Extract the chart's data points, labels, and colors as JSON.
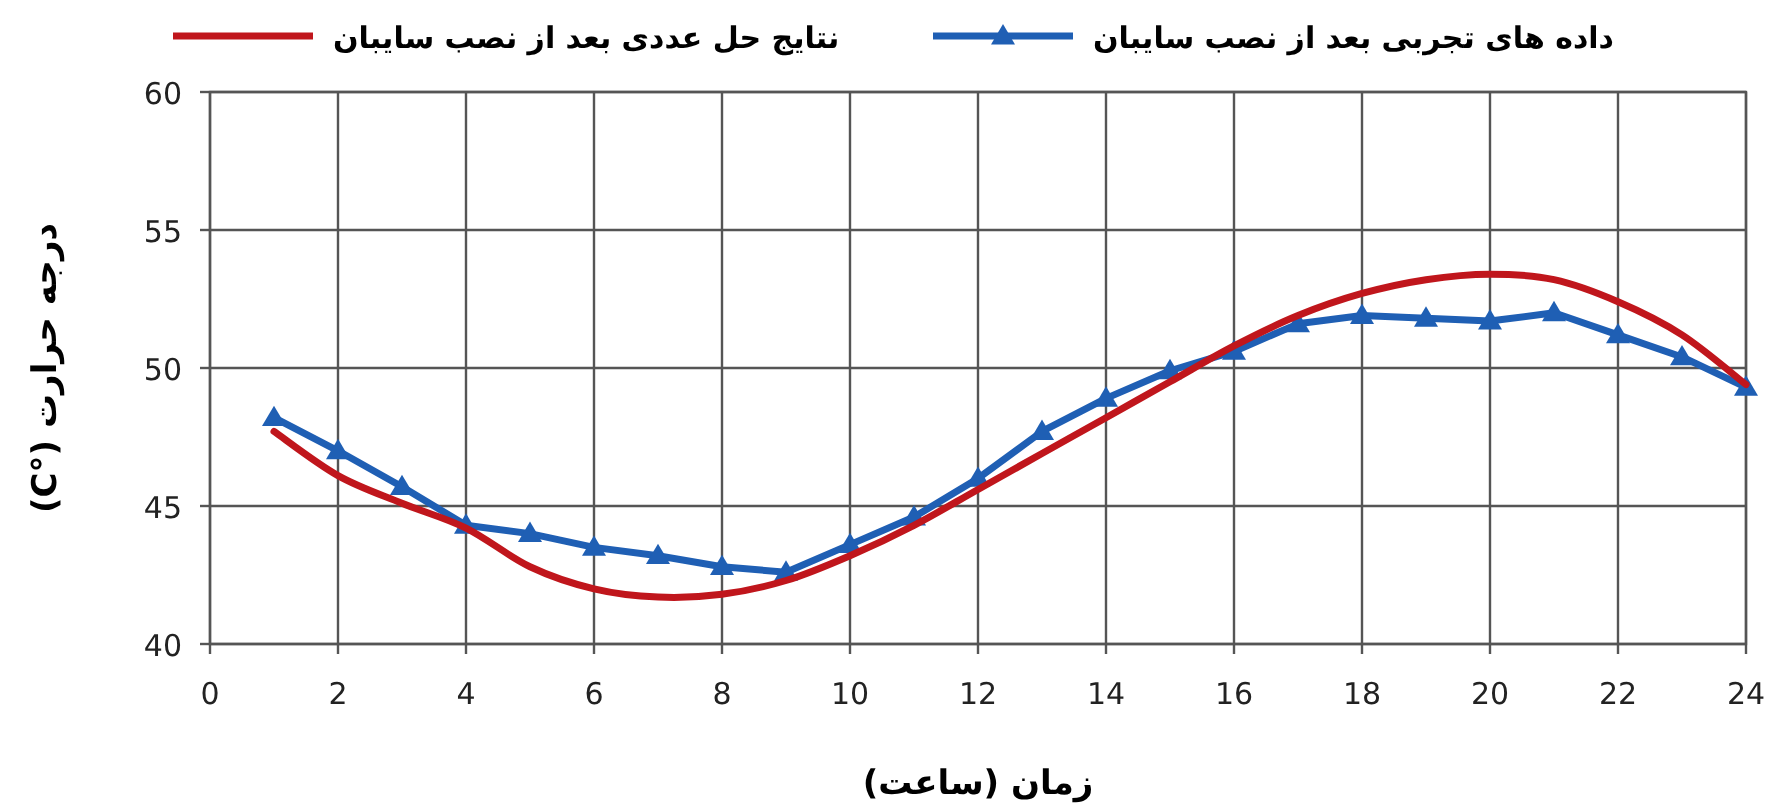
{
  "chart_data": {
    "type": "line",
    "xlabel": "زمان (ساعت)",
    "ylabel": "درجه حرارت (°C)",
    "xlim": [
      0,
      24
    ],
    "xticks": [
      0,
      2,
      4,
      6,
      8,
      10,
      12,
      14,
      16,
      18,
      20,
      22,
      24
    ],
    "ylim": [
      40,
      60
    ],
    "yticks": [
      40,
      45,
      50,
      55,
      60
    ],
    "grid": true,
    "legend": "top",
    "line_style": "solid",
    "series": [
      {
        "name": "داده های تجربی بعد از نصب سایبان",
        "color": "#1f5fb4",
        "marker": "triangle",
        "x": [
          1,
          2,
          3,
          4,
          5,
          6,
          7,
          8,
          9,
          10,
          11,
          12,
          13,
          14,
          15,
          16,
          17,
          18,
          19,
          20,
          21,
          22,
          23,
          24
        ],
        "values": [
          48.2,
          47.0,
          45.7,
          44.3,
          44.0,
          43.5,
          43.2,
          42.8,
          42.6,
          43.6,
          44.6,
          46.0,
          47.7,
          48.9,
          49.9,
          50.6,
          51.6,
          51.9,
          51.8,
          51.7,
          52.0,
          51.2,
          50.4,
          49.3
        ]
      },
      {
        "name": "نتایج حل عددی بعد از نصب سایبان",
        "color": "#c0161c",
        "marker": "none",
        "x": [
          1,
          2,
          3,
          4,
          5,
          6,
          7,
          8,
          9,
          10,
          11,
          12,
          13,
          14,
          15,
          16,
          17,
          18,
          19,
          20,
          21,
          22,
          23,
          24
        ],
        "values": [
          47.7,
          46.1,
          45.1,
          44.2,
          42.8,
          42.0,
          41.7,
          41.8,
          42.3,
          43.2,
          44.3,
          45.6,
          46.9,
          48.2,
          49.5,
          50.8,
          51.9,
          52.7,
          53.2,
          53.4,
          53.2,
          52.4,
          51.2,
          49.4
        ]
      }
    ]
  }
}
